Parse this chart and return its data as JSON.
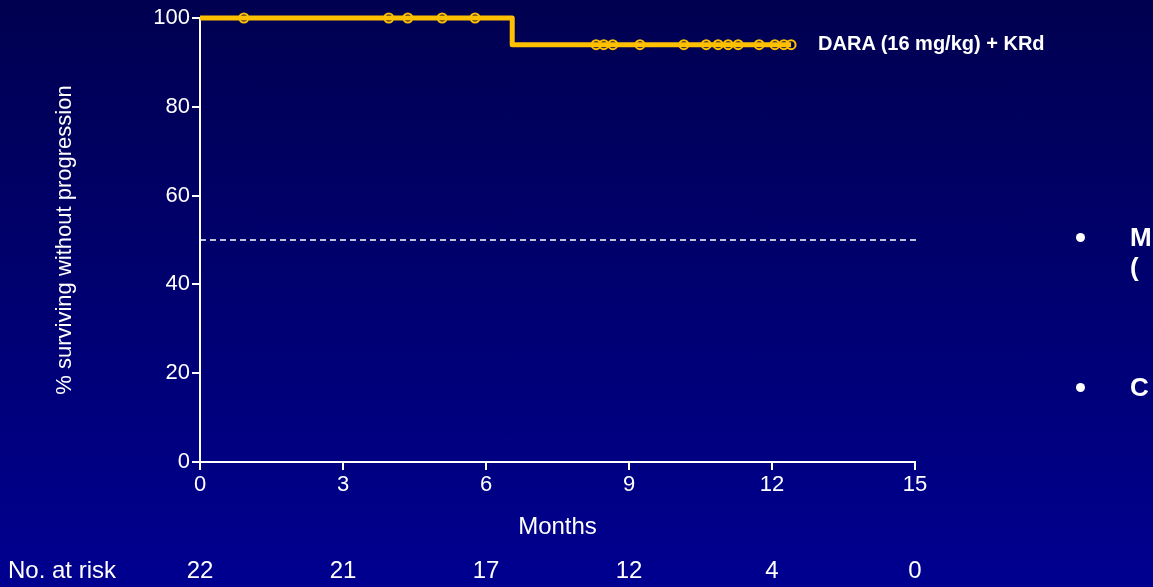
{
  "chart_data": {
    "type": "step",
    "xlabel": "Months",
    "ylabel": "% surviving without progression",
    "xlim": [
      0,
      15
    ],
    "xticks": [
      0,
      3,
      6,
      9,
      12,
      15
    ],
    "ylim": [
      0,
      100
    ],
    "yticks": [
      0,
      20,
      40,
      60,
      80,
      100
    ],
    "grid": false,
    "legend": false,
    "series": [
      {
        "type": "step",
        "name": "DARA (16 mg/kg) + KRd",
        "color": "#ffc000",
        "x": [
          0,
          6.55,
          12.4
        ],
        "values": [
          100,
          94,
          94
        ],
        "marker": "none"
      },
      {
        "type": "scatter",
        "color": "#ffc000",
        "marker": "circle",
        "x": [
          0.92,
          3.96,
          4.36,
          5.08,
          5.77,
          8.31,
          8.47,
          8.66,
          9.23,
          10.15,
          10.62,
          10.87,
          11.08,
          11.29,
          11.73,
          12.06,
          12.25,
          12.4
        ],
        "values": [
          100,
          100,
          100,
          100,
          100,
          94,
          94,
          94,
          94,
          94,
          94,
          94,
          94,
          94,
          94,
          94,
          94,
          94
        ]
      }
    ],
    "ref_lines": [
      {
        "axis": "y",
        "value": 50,
        "color": "#ffffff",
        "line_style": "dashed"
      }
    ],
    "annotations": [
      "No. at risk",
      "22",
      "21",
      "17",
      "12",
      "4",
      "0",
      "M",
      "(",
      "C"
    ]
  }
}
